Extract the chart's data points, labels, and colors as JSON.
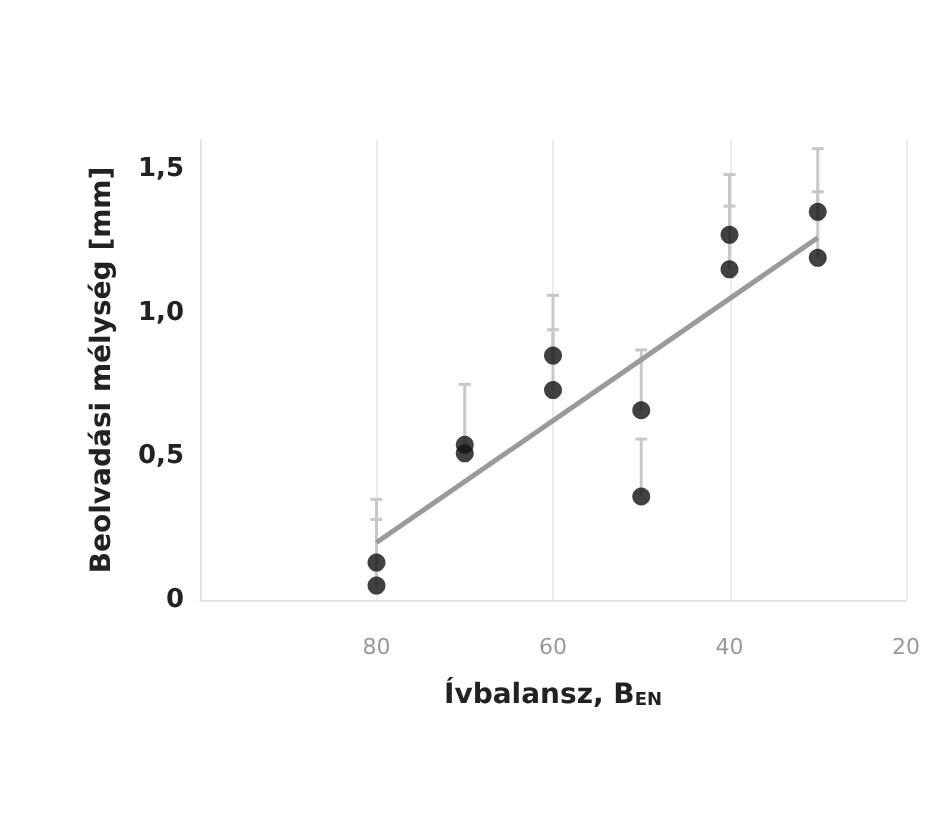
{
  "chart_data": {
    "type": "scatter",
    "xlabel": "Ívbalansz, B$_{EN}$",
    "ylabel": "Beolvadási mélység [mm]",
    "xlim": [
      100,
      20
    ],
    "xticks": [
      80,
      60,
      40,
      20
    ],
    "ylim": [
      0,
      1.6
    ],
    "yticks": [
      {
        "value": 0,
        "label": "0"
      },
      {
        "value": 0.5,
        "label": "0,5"
      },
      {
        "value": 1,
        "label": "1,0"
      },
      {
        "value": 1.5,
        "label": "1,5"
      }
    ],
    "grid": "x",
    "marker": "circle",
    "series": [
      {
        "color": "#111111",
        "x": [
          80,
          80,
          70,
          70,
          60,
          60,
          50,
          50,
          40,
          40,
          30,
          30
        ],
        "values": [
          0.13,
          0.05,
          0.54,
          0.51,
          0.85,
          0.73,
          0.66,
          0.36,
          1.27,
          1.15,
          1.35,
          1.19
        ],
        "errors": [
          [
            0.13,
            0.35
          ],
          [
            0.05,
            0.28
          ],
          [
            0.54,
            0.75
          ],
          null,
          [
            0.85,
            1.06
          ],
          [
            0.73,
            0.94
          ],
          [
            0.66,
            0.87
          ],
          [
            0.36,
            0.56
          ],
          [
            1.27,
            1.48
          ],
          [
            1.15,
            1.37
          ],
          [
            1.35,
            1.57
          ],
          [
            1.19,
            1.42
          ]
        ]
      },
      {
        "type": "line",
        "color": "#9a9a9a",
        "x": [
          80,
          30
        ],
        "values": [
          0.2,
          1.26
        ],
        "marker": "none"
      }
    ]
  }
}
